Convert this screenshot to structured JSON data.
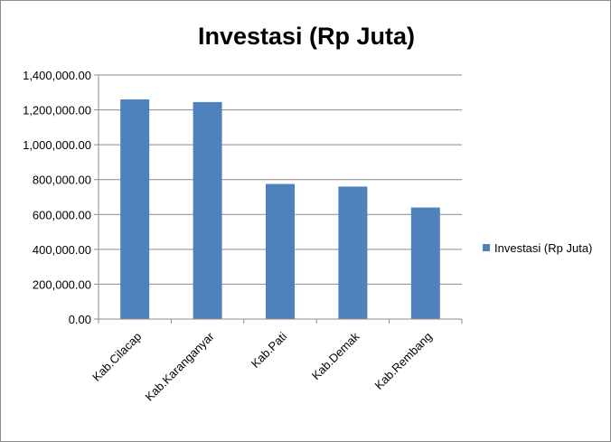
{
  "chart_data": {
    "type": "bar",
    "title": "Investasi (Rp Juta)",
    "categories": [
      "Kab.Cilacap",
      "Kab.Karanganyar",
      "Kab.Pati",
      "Kab.Demak",
      "Kab.Rembang"
    ],
    "series": [
      {
        "name": "Investasi (Rp Juta)",
        "values": [
          1260000,
          1245000,
          775000,
          760000,
          640000
        ],
        "color": "#4f81bd"
      }
    ],
    "y_ticks": [
      "0.00",
      "200,000.00",
      "400,000.00",
      "600,000.00",
      "800,000.00",
      "1,000,000.00",
      "1,200,000.00",
      "1,400,000.00"
    ],
    "ylim": [
      0,
      1400000
    ],
    "grid": true,
    "legend_position": "right"
  }
}
